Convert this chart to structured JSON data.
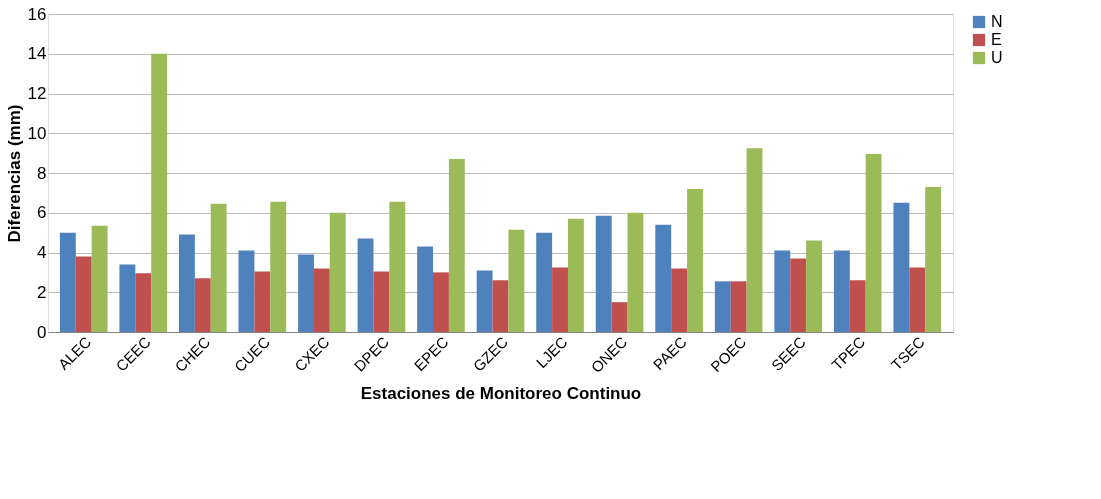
{
  "chart_data": {
    "type": "bar",
    "xlabel": "Estaciones de Monitoreo Continuo",
    "ylabel": "Diferencias (mm)",
    "categories": [
      "ALEC",
      "CEEC",
      "CHEC",
      "CUEC",
      "CXEC",
      "DPEC",
      "EPEC",
      "GZEC",
      "LJEC",
      "ONEC",
      "PAEC",
      "POEC",
      "SEEC",
      "TPEC",
      "TSEC"
    ],
    "series": [
      {
        "name": "N",
        "color": "#4f81bd",
        "values": [
          5.0,
          3.4,
          4.9,
          4.1,
          3.9,
          4.7,
          4.3,
          3.1,
          5.0,
          5.85,
          5.4,
          2.55,
          4.1,
          4.1,
          6.5
        ]
      },
      {
        "name": "E",
        "color": "#c0504d",
        "values": [
          3.8,
          2.95,
          2.7,
          3.05,
          3.2,
          3.05,
          3.0,
          2.6,
          3.25,
          1.5,
          3.2,
          2.55,
          3.7,
          2.6,
          3.25
        ]
      },
      {
        "name": "U",
        "color": "#9bbb59",
        "values": [
          5.35,
          14.0,
          6.45,
          6.55,
          6.0,
          6.55,
          8.7,
          5.15,
          5.7,
          6.0,
          7.2,
          9.25,
          4.6,
          8.95,
          7.3
        ]
      }
    ],
    "ylim": [
      0,
      16
    ],
    "yticks": [
      0,
      2,
      4,
      6,
      8,
      10,
      12,
      14,
      16
    ],
    "grid": "y",
    "legend": "right"
  }
}
